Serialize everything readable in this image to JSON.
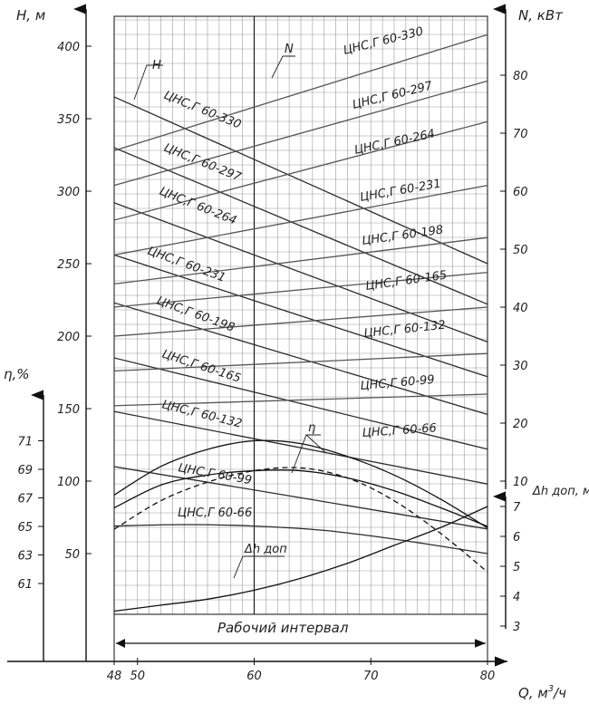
{
  "chart_data": {
    "type": "line",
    "axes": {
      "x": {
        "label": "Q, м³/ч",
        "label_main": "Q, м",
        "label_sup": "3",
        "label_tail": "/ч",
        "range": [
          48,
          80
        ],
        "ticks": [
          48,
          50,
          60,
          70,
          80
        ]
      },
      "h": {
        "label": "H, м",
        "range": [
          0,
          410
        ],
        "ticks": [
          50,
          100,
          150,
          200,
          250,
          300,
          350,
          400
        ]
      },
      "n": {
        "label": "N, кВт",
        "range": [
          10,
          90
        ],
        "ticks": [
          10,
          20,
          30,
          40,
          50,
          60,
          70,
          80
        ]
      },
      "eta": {
        "label": "η,%",
        "range": [
          59,
          73
        ],
        "ticks": [
          61,
          63,
          65,
          67,
          69,
          71
        ]
      },
      "dh": {
        "label": "Δh доп, м",
        "range": [
          3,
          7
        ],
        "ticks": [
          3,
          4,
          5,
          6,
          7
        ]
      }
    },
    "interval_label": "Рабочий интервал",
    "markers": {
      "h": "H",
      "n": "N",
      "eta": "η",
      "dh": "Δh доп"
    },
    "colors": {
      "h_curve": "#2b2b2b",
      "n_curve": "#555555",
      "eta_curve": "#111111",
      "grid": "#9a9a9a"
    },
    "head_series": [
      {
        "name": "ЦНС,Г 60-330",
        "x": [
          48,
          80
        ],
        "y": [
          365,
          250
        ]
      },
      {
        "name": "ЦНС,Г 60-297",
        "x": [
          48,
          80
        ],
        "y": [
          330,
          222
        ]
      },
      {
        "name": "ЦНС,Г 60-264",
        "x": [
          48,
          80
        ],
        "y": [
          292,
          196
        ]
      },
      {
        "name": "ЦНС,Г 60-231",
        "x": [
          48,
          80
        ],
        "y": [
          256,
          172
        ]
      },
      {
        "name": "ЦНС,Г 60-198",
        "x": [
          48,
          80
        ],
        "y": [
          223,
          146
        ]
      },
      {
        "name": "ЦНС,Г 60-165",
        "x": [
          48,
          80
        ],
        "y": [
          185,
          122
        ]
      },
      {
        "name": "ЦНС,Г 60-132",
        "x": [
          48,
          80
        ],
        "y": [
          148,
          98
        ]
      },
      {
        "name": "ЦНС,Г 60-99",
        "x": [
          48,
          80
        ],
        "y": [
          110,
          67
        ]
      },
      {
        "name": "ЦНС,Г 60-66",
        "x": [
          48,
          54,
          60,
          66,
          72,
          80
        ],
        "y": [
          69,
          70,
          69,
          66,
          60,
          50
        ]
      }
    ],
    "power_series": [
      {
        "name": "ЦНС,Г 60-330",
        "x": [
          48,
          80
        ],
        "y": [
          67,
          87
        ]
      },
      {
        "name": "ЦНС,Г 60-297",
        "x": [
          48,
          80
        ],
        "y": [
          61,
          79
        ]
      },
      {
        "name": "ЦНС,Г 60-264",
        "x": [
          48,
          80
        ],
        "y": [
          55,
          72
        ]
      },
      {
        "name": "ЦНС,Г 60-231",
        "x": [
          48,
          80
        ],
        "y": [
          49,
          61
        ]
      },
      {
        "name": "ЦНС,Г 60-198",
        "x": [
          48,
          80
        ],
        "y": [
          44,
          52
        ]
      },
      {
        "name": "ЦНС,Г 60-165",
        "x": [
          48,
          80
        ],
        "y": [
          40,
          46
        ]
      },
      {
        "name": "ЦНС,Г 60-132",
        "x": [
          48,
          80
        ],
        "y": [
          35,
          40
        ]
      },
      {
        "name": "ЦНС,Г 60-99",
        "x": [
          48,
          80
        ],
        "y": [
          29,
          32
        ]
      },
      {
        "name": "ЦНС,Г 60-66",
        "x": [
          48,
          80
        ],
        "y": [
          23,
          25
        ]
      }
    ],
    "efficiency_curves": [
      {
        "x": [
          48,
          52,
          56,
          60,
          64,
          68,
          72,
          76,
          80
        ],
        "y": [
          67.2,
          69.2,
          70.4,
          71.0,
          70.8,
          69.9,
          68.6,
          66.9,
          64.9
        ]
      },
      {
        "x": [
          48,
          52,
          56,
          60,
          64,
          68,
          72,
          76,
          80
        ],
        "y": [
          66.3,
          67.9,
          68.6,
          68.9,
          68.9,
          68.4,
          67.5,
          66.3,
          65.0
        ]
      }
    ],
    "efficiency_dashed": {
      "x": [
        48,
        52,
        56,
        60,
        64,
        68,
        72,
        76,
        80
      ],
      "y": [
        64.8,
        66.8,
        68.1,
        68.9,
        69.1,
        68.4,
        66.8,
        64.5,
        61.8
      ]
    },
    "npsh_curve": {
      "x": [
        48,
        52,
        56,
        60,
        64,
        68,
        72,
        76,
        80
      ],
      "y": [
        3.5,
        3.7,
        3.9,
        4.2,
        4.6,
        5.1,
        5.7,
        6.3,
        7.0
      ]
    }
  }
}
